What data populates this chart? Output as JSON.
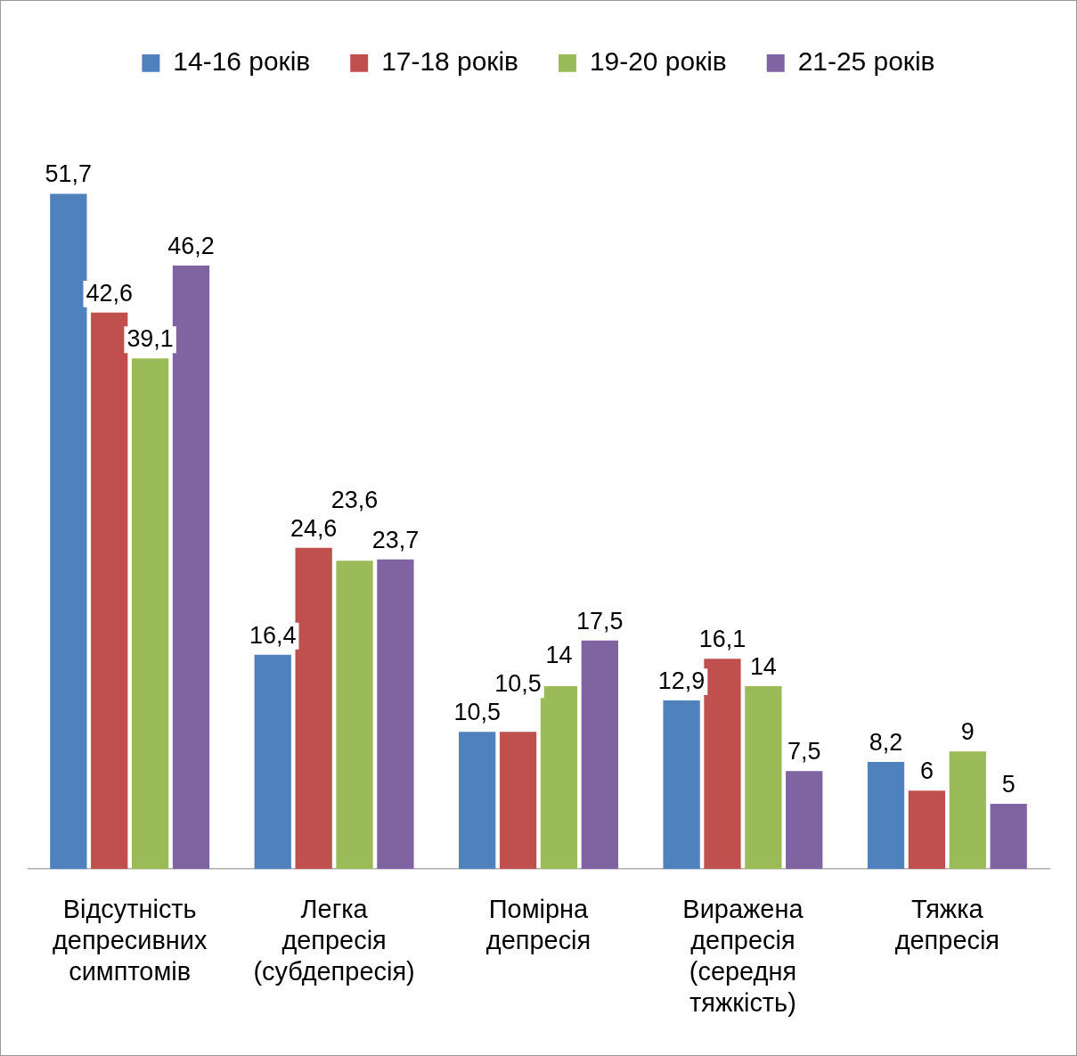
{
  "chart_data": {
    "type": "bar",
    "categories": [
      "Відсутність депресивних симптомів",
      "Легка депресія (субдепресія)",
      "Помірна депресія",
      "Виражена депресія (середня тяжкість)",
      "Тяжка депресія"
    ],
    "series": [
      {
        "name": "14-16 років",
        "color": "#4f81bd",
        "values": [
          51.7,
          16.4,
          10.5,
          12.9,
          8.2
        ],
        "value_labels": [
          "51,7",
          "16,4",
          "10,5",
          "12,9",
          "8,2"
        ]
      },
      {
        "name": "17-18 років",
        "color": "#c0504d",
        "values": [
          42.6,
          24.6,
          10.5,
          16.1,
          6
        ],
        "value_labels": [
          "42,6",
          "24,6",
          "10,5",
          "16,1",
          "6"
        ]
      },
      {
        "name": "19-20 років",
        "color": "#9bbb59",
        "values": [
          39.1,
          23.6,
          14,
          14,
          9
        ],
        "value_labels": [
          "39,1",
          "23,6",
          "14",
          "14",
          "9"
        ]
      },
      {
        "name": "21-25 років",
        "color": "#8064a2",
        "values": [
          46.2,
          23.7,
          17.5,
          7.5,
          5
        ],
        "value_labels": [
          "46,2",
          "23,7",
          "17,5",
          "7,5",
          "5"
        ]
      }
    ],
    "legend": "top",
    "grid": false
  }
}
